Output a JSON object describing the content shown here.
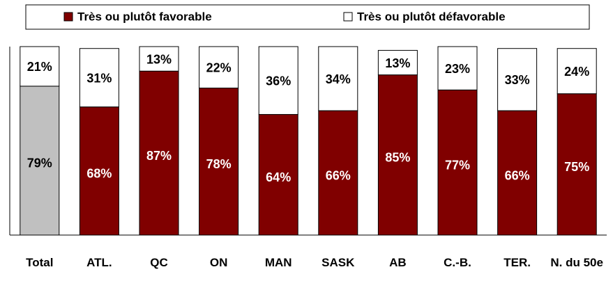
{
  "chart_data": {
    "type": "stacked_bar",
    "categories": [
      "Total",
      "ATL.",
      "QC",
      "ON",
      "MAN",
      "SASK",
      "AB",
      "C.-B.",
      "TER.",
      "N. du 50e"
    ],
    "series": [
      {
        "name": "Très ou plutôt favorable",
        "color": "#800000",
        "colors": [
          "#c0c0c0",
          "#800000",
          "#800000",
          "#800000",
          "#800000",
          "#800000",
          "#800000",
          "#800000",
          "#800000",
          "#800000"
        ],
        "values": [
          79,
          68,
          87,
          78,
          64,
          66,
          85,
          77,
          66,
          75
        ],
        "value_labels": [
          "79%",
          "68%",
          "87%",
          "78%",
          "64%",
          "66%",
          "85%",
          "77%",
          "66%",
          "75%"
        ]
      },
      {
        "name": "Très ou plutôt défavorable",
        "color": "#ffffff",
        "values": [
          21,
          31,
          13,
          22,
          36,
          34,
          13,
          23,
          33,
          24
        ],
        "value_labels": [
          "21%",
          "31%",
          "13%",
          "22%",
          "36%",
          "34%",
          "13%",
          "23%",
          "33%",
          "24%"
        ]
      }
    ],
    "ylim": [
      0,
      100
    ],
    "legend": "top"
  }
}
